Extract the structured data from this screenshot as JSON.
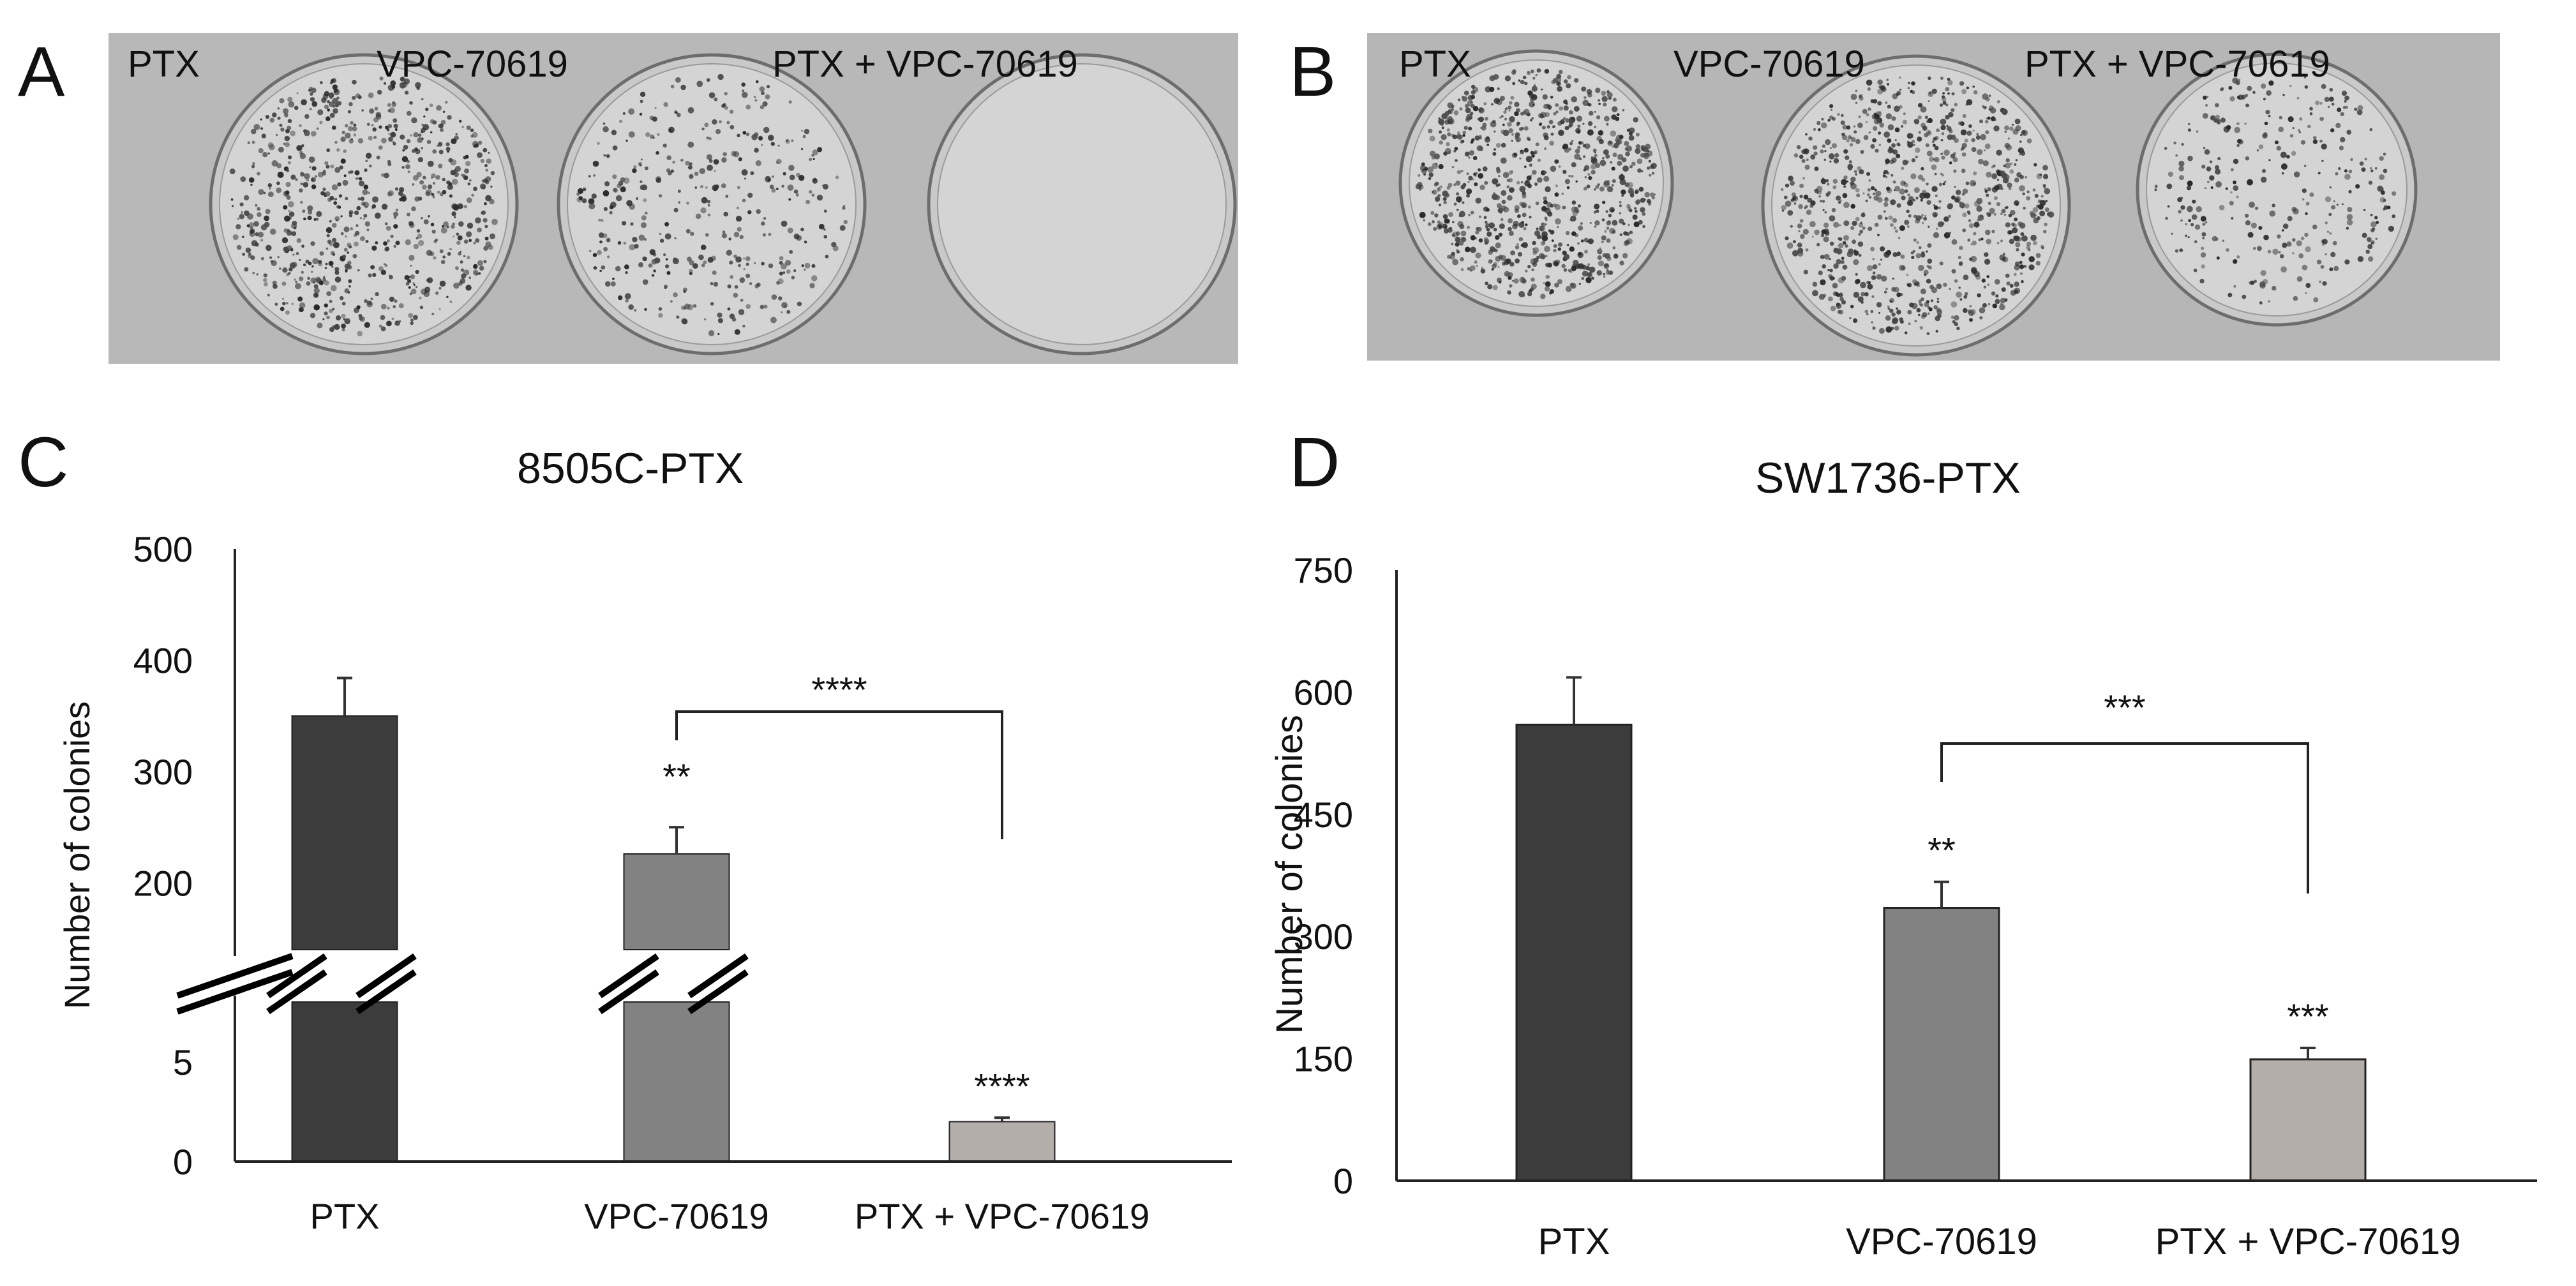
{
  "panels": {
    "a": {
      "letter": "A",
      "labels": [
        "PTX",
        "VPC-70619",
        "PTX + VPC-70619"
      ],
      "dishes": [
        {
          "name": "PTX",
          "density": 0.85
        },
        {
          "name": "VPC-70619",
          "density": 0.45
        },
        {
          "name": "PTX + VPC-70619",
          "density": 0.0
        }
      ]
    },
    "b": {
      "letter": "B",
      "labels": [
        "PTX",
        "VPC-70619",
        "PTX + VPC-70619"
      ],
      "dishes": [
        {
          "name": "PTX",
          "density": 0.95
        },
        {
          "name": "VPC-70619",
          "density": 1.0
        },
        {
          "name": "PTX + VPC-70619",
          "density": 0.35
        }
      ]
    },
    "c": {
      "letter": "C"
    },
    "d": {
      "letter": "D"
    }
  },
  "chart_data": [
    {
      "id": "C",
      "type": "bar",
      "title": "8505C-PTX",
      "ylabel": "Number of colonies",
      "xlabel": "",
      "categories": [
        "PTX",
        "VPC-70619",
        "PTX + VPC-70619"
      ],
      "values": [
        350,
        226,
        2
      ],
      "errors": [
        34,
        24,
        0.2
      ],
      "colors": [
        "#3c3c3c",
        "#828282",
        "#b4aeab"
      ],
      "axis_break": true,
      "lower_range": [
        0,
        8
      ],
      "upper_range": [
        140,
        500
      ],
      "yticks": [
        0,
        5,
        200,
        300,
        400,
        500
      ],
      "bar_annotations": [
        "",
        "**",
        "****"
      ],
      "bracket": {
        "from": "VPC-70619",
        "to": "PTX + VPC-70619",
        "label": "****"
      }
    },
    {
      "id": "D",
      "type": "bar",
      "title": "SW1736-PTX",
      "ylabel": "Number of colonies",
      "xlabel": "",
      "categories": [
        "PTX",
        "VPC-70619",
        "PTX + VPC-70619"
      ],
      "values": [
        560,
        335,
        149
      ],
      "errors": [
        58,
        32,
        14
      ],
      "colors": [
        "#3c3c3c",
        "#828282",
        "#b4aeab"
      ],
      "ylim": [
        0,
        750
      ],
      "yticks": [
        0,
        150,
        300,
        450,
        600,
        750
      ],
      "bar_annotations": [
        "",
        "**",
        "***"
      ],
      "bracket": {
        "from": "VPC-70619",
        "to": "PTX + VPC-70619",
        "label": "***"
      }
    }
  ]
}
